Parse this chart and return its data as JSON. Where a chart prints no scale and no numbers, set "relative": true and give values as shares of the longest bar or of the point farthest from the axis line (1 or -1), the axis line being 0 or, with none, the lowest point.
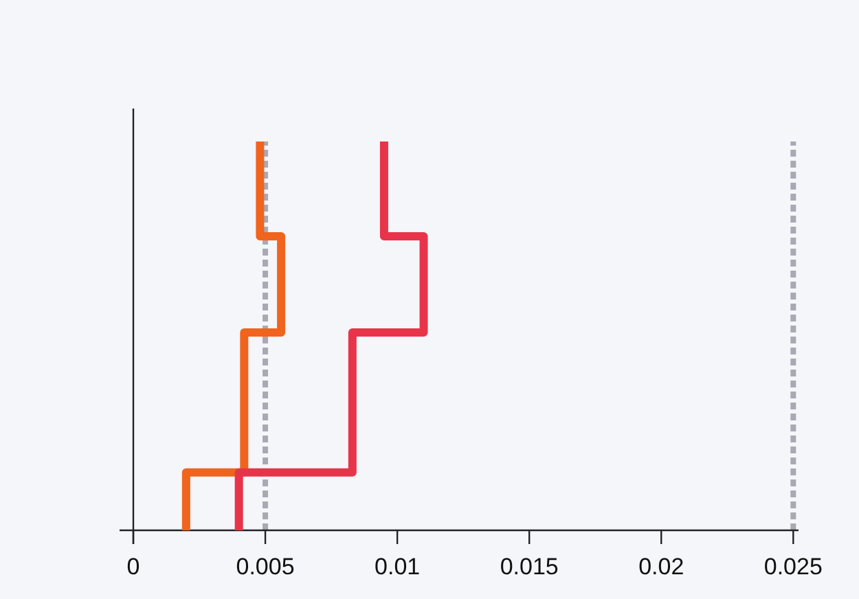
{
  "chart_data": {
    "type": "step",
    "xlim": [
      0,
      0.0252
    ],
    "xticks": [
      0,
      0.005,
      0.01,
      0.015,
      0.02,
      0.025
    ],
    "relative": true,
    "tick_labels": "x",
    "grid": false,
    "line_style": "solid",
    "marker": "none",
    "series": [
      {
        "color": "#f0641e",
        "x": [
          0.002,
          0.0042,
          0.0056,
          0.0048,
          0.0048
        ],
        "values": [
          0,
          0.149,
          0.509,
          0.756,
          1
        ]
      },
      {
        "color": "#e8344a",
        "x": [
          0.004,
          0.0083,
          0.011,
          0.0095,
          0.0095
        ],
        "values": [
          0,
          0.149,
          0.509,
          0.756,
          1
        ]
      }
    ],
    "ref_lines": [
      {
        "axis": "x",
        "value": 0.005,
        "color": "#a9a9b4",
        "line_style": "dashed"
      },
      {
        "axis": "x",
        "value": 0.025,
        "color": "#a9a9b4",
        "line_style": "dashed"
      }
    ]
  }
}
